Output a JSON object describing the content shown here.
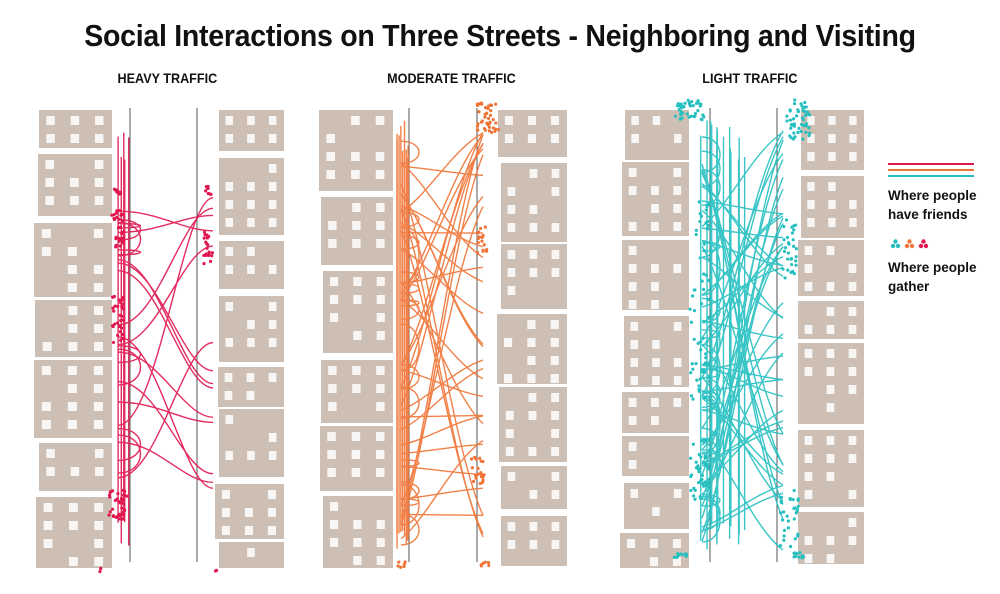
{
  "title": "Social Interactions on Three Streets - Neighboring and Visiting",
  "colors": {
    "building": "#cdbfb3",
    "heavy": "#e0164f",
    "moderate": "#f07436",
    "light": "#25bfc0",
    "street_line": "#555555"
  },
  "panels": [
    {
      "key": "heavy",
      "label": "HEAVY TRAFFIC",
      "color": "#e0164f"
    },
    {
      "key": "moderate",
      "label": "MODERATE TRAFFIC",
      "color": "#f07436"
    },
    {
      "key": "light",
      "label": "LIGHT TRAFFIC",
      "color": "#25bfc0"
    }
  ],
  "legend": {
    "friends_label": "Where people have friends",
    "gather_label": "Where people gather"
  }
}
